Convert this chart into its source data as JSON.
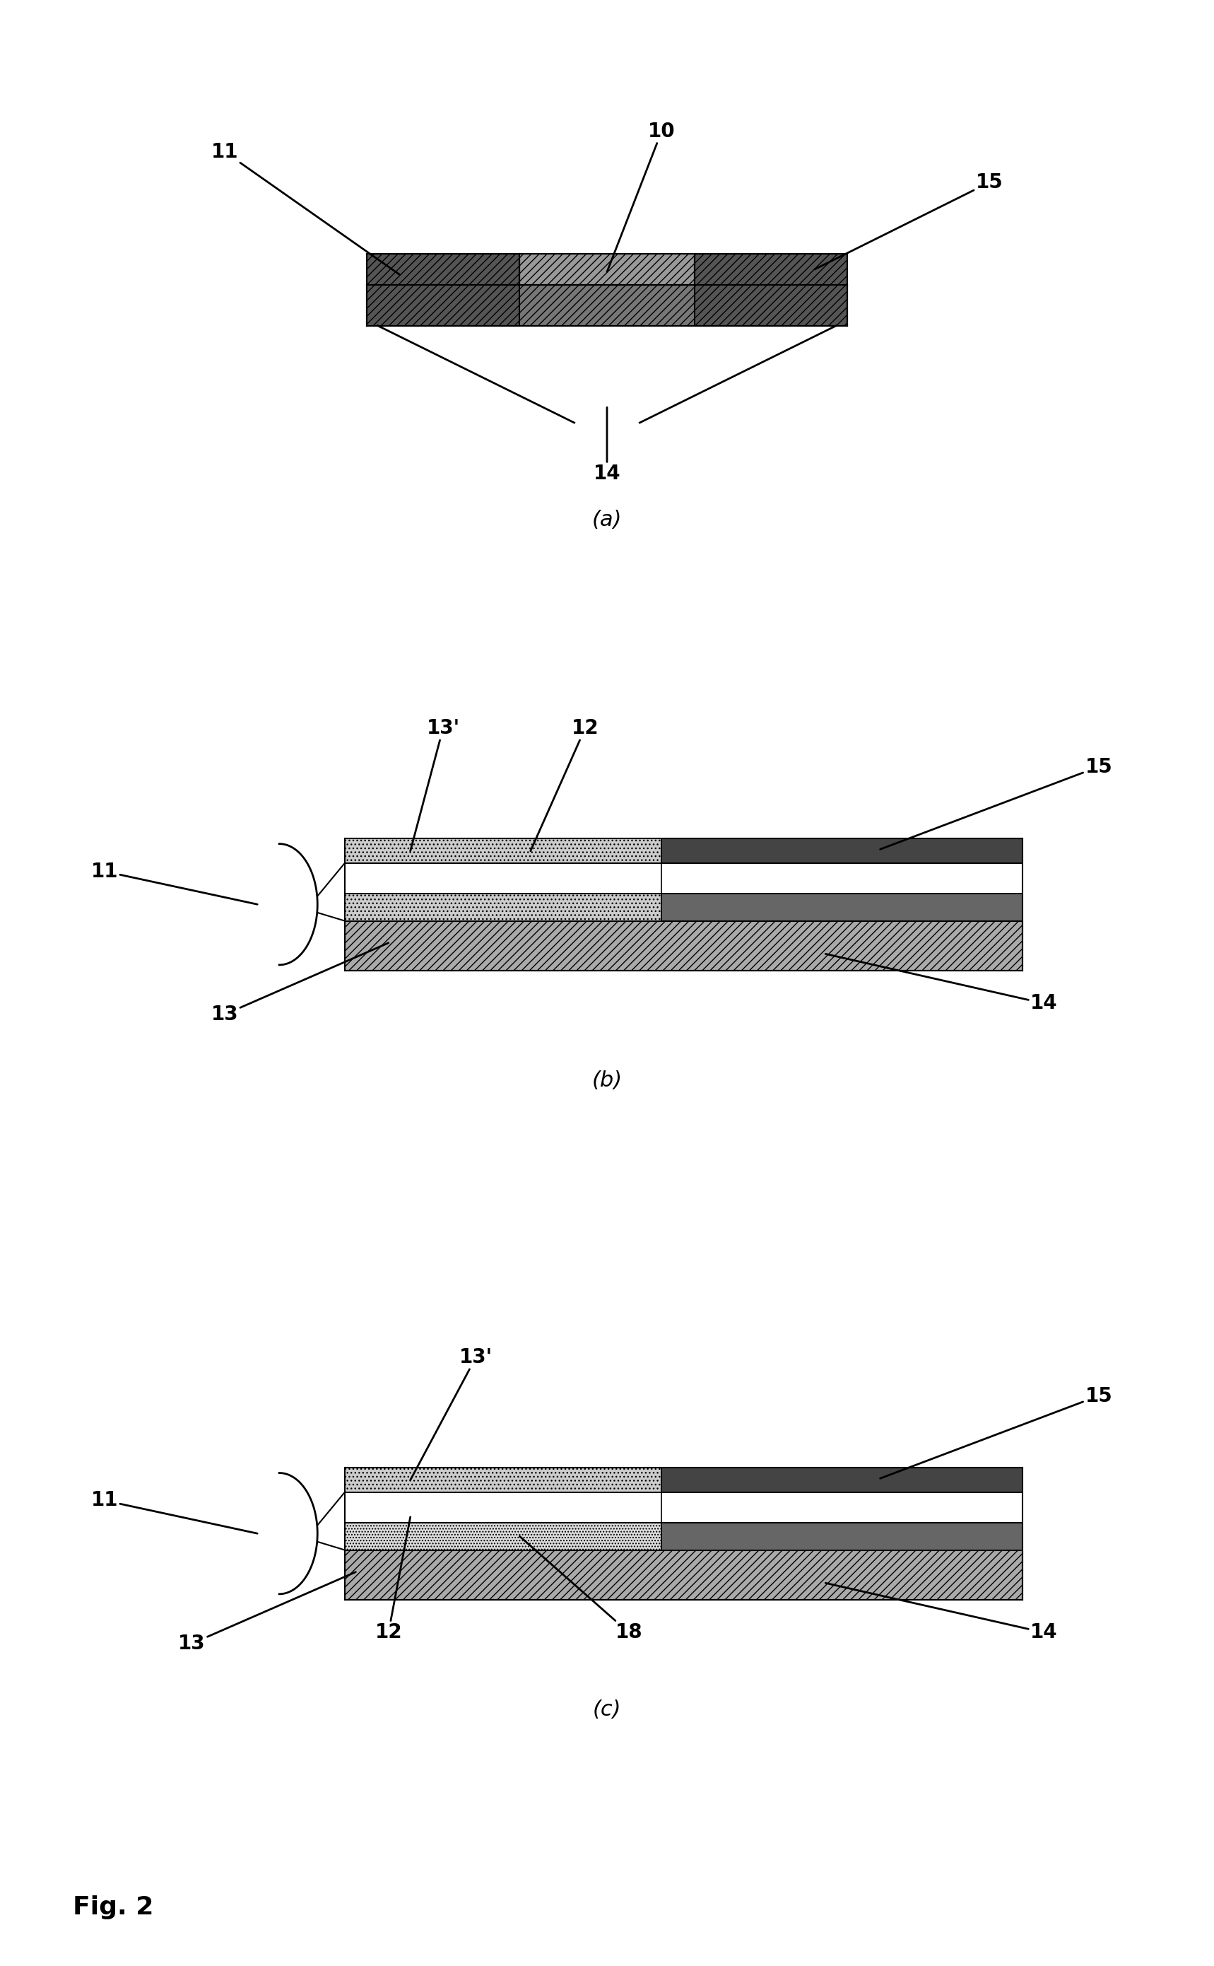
{
  "fig_width": 17.18,
  "fig_height": 27.81,
  "bg_color": "#ffffff",
  "title": "Fig. 2",
  "panel_a_label": "(a)",
  "panel_b_label": "(b)",
  "panel_c_label": "(c)",
  "color_dark_hatch": "#444444",
  "color_mid_hatch": "#888888",
  "color_light_hatch": "#bbbbbb",
  "color_dotted": "#cccccc",
  "color_dark_solid": "#555555",
  "color_white": "#ffffff"
}
